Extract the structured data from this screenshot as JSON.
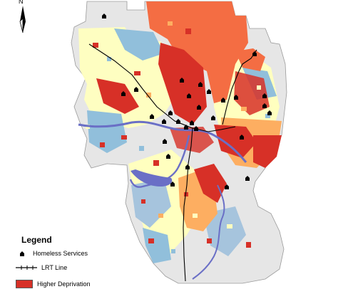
{
  "north_arrow": {
    "letter": "N"
  },
  "legend": {
    "title": "Legend",
    "items": [
      {
        "label": "Homeless Services",
        "symbol": "house-icon"
      },
      {
        "label": "LRT Line",
        "symbol": "rail-line-icon"
      },
      {
        "label": "Higher Deprivation",
        "symbol": "red-swatch",
        "color": "#d73027"
      }
    ]
  },
  "colors": {
    "higher_deprivation": "#d73027",
    "high": "#f46d43",
    "medium_high": "#fdae61",
    "medium": "#ffffbf",
    "low": "#91bfdb",
    "lowest": "#a6c4dd",
    "no_data": "#e6e6e6",
    "river": "#6a6fc6"
  }
}
